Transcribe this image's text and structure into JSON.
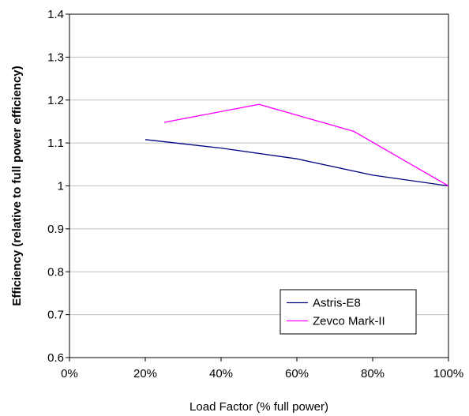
{
  "chart_data": {
    "type": "line",
    "title": "",
    "xlabel": "Load Factor (% full power)",
    "ylabel": "Efficiency (relative to full power efficiency)",
    "xlim": [
      0,
      100
    ],
    "ylim": [
      0.6,
      1.4
    ],
    "x_ticks": [
      0,
      20,
      40,
      60,
      80,
      100
    ],
    "x_tick_labels": [
      "0%",
      "20%",
      "40%",
      "60%",
      "80%",
      "100%"
    ],
    "y_ticks": [
      0.6,
      0.7,
      0.8,
      0.9,
      1.0,
      1.1,
      1.2,
      1.3,
      1.4
    ],
    "y_tick_labels": [
      "0.6",
      "0.7",
      "0.8",
      "0.9",
      "1",
      "1.1",
      "1.2",
      "1.3",
      "1.4"
    ],
    "grid": "horizontal",
    "legend_position": "bottom-right",
    "series": [
      {
        "name": "Astris-E8",
        "color": "#000080",
        "x": [
          20,
          40,
          60,
          80,
          100
        ],
        "y": [
          1.108,
          1.088,
          1.063,
          1.025,
          1.0
        ]
      },
      {
        "name": "Zevco Mark-II",
        "color": "#ff00ff",
        "x": [
          25,
          50,
          75,
          100
        ],
        "y": [
          1.148,
          1.19,
          1.127,
          1.0
        ]
      }
    ]
  }
}
